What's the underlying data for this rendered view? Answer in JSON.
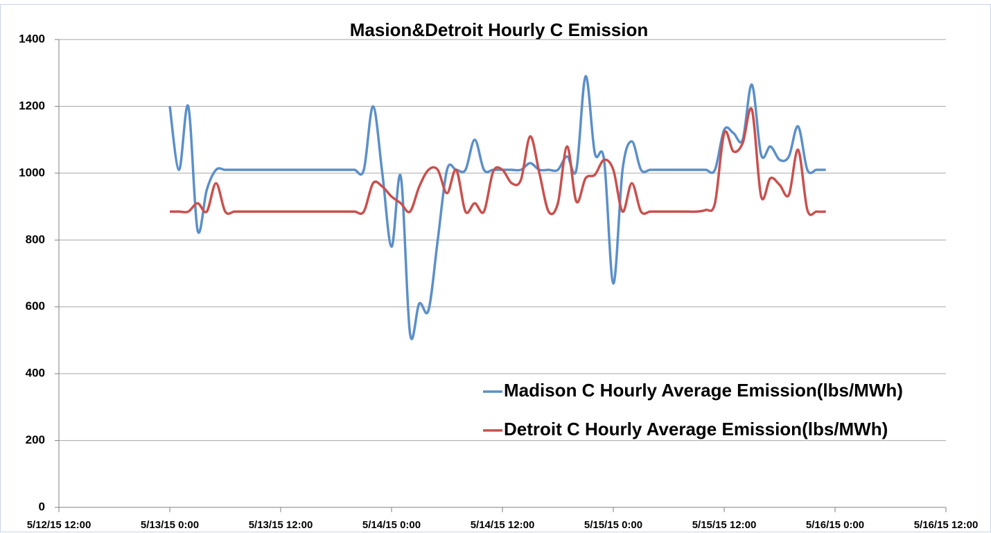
{
  "chart_data": {
    "type": "line",
    "title": "Masion&Detroit Hourly C Emission",
    "x": [
      "5/13/15 0:00",
      "5/13/15 1:00",
      "5/13/15 2:00",
      "5/13/15 3:00",
      "5/13/15 4:00",
      "5/13/15 5:00",
      "5/13/15 6:00",
      "5/13/15 7:00",
      "5/13/15 8:00",
      "5/13/15 9:00",
      "5/13/15 10:00",
      "5/13/15 11:00",
      "5/13/15 12:00",
      "5/13/15 13:00",
      "5/13/15 14:00",
      "5/13/15 15:00",
      "5/13/15 16:00",
      "5/13/15 17:00",
      "5/13/15 18:00",
      "5/13/15 19:00",
      "5/13/15 20:00",
      "5/13/15 21:00",
      "5/13/15 22:00",
      "5/13/15 23:00",
      "5/14/15 0:00",
      "5/14/15 1:00",
      "5/14/15 2:00",
      "5/14/15 3:00",
      "5/14/15 4:00",
      "5/14/15 5:00",
      "5/14/15 6:00",
      "5/14/15 7:00",
      "5/14/15 8:00",
      "5/14/15 9:00",
      "5/14/15 10:00",
      "5/14/15 11:00",
      "5/14/15 12:00",
      "5/14/15 13:00",
      "5/14/15 14:00",
      "5/14/15 15:00",
      "5/14/15 16:00",
      "5/14/15 17:00",
      "5/14/15 18:00",
      "5/14/15 19:00",
      "5/14/15 20:00",
      "5/14/15 21:00",
      "5/14/15 22:00",
      "5/14/15 23:00",
      "5/15/15 0:00",
      "5/15/15 1:00",
      "5/15/15 2:00",
      "5/15/15 3:00",
      "5/15/15 4:00",
      "5/15/15 5:00",
      "5/15/15 6:00",
      "5/15/15 7:00",
      "5/15/15 8:00",
      "5/15/15 9:00",
      "5/15/15 10:00",
      "5/15/15 11:00",
      "5/15/15 12:00",
      "5/15/15 13:00",
      "5/15/15 14:00",
      "5/15/15 15:00",
      "5/15/15 16:00",
      "5/15/15 17:00",
      "5/15/15 18:00",
      "5/15/15 19:00",
      "5/15/15 20:00",
      "5/15/15 21:00",
      "5/15/15 22:00",
      "5/15/15 23:00"
    ],
    "series": [
      {
        "name": "Madison C Hourly Average Emission(lbs/MWh)",
        "color": "#5b8fc9",
        "values": [
          1200,
          1010,
          1200,
          830,
          950,
          1010,
          1010,
          1010,
          1010,
          1010,
          1010,
          1010,
          1010,
          1010,
          1010,
          1010,
          1010,
          1010,
          1010,
          1010,
          1010,
          1010,
          1200,
          1000,
          780,
          990,
          520,
          610,
          590,
          800,
          1010,
          1010,
          1010,
          1100,
          1010,
          1010,
          1010,
          1010,
          1010,
          1030,
          1010,
          1010,
          1010,
          1050,
          1010,
          1290,
          1060,
          1040,
          670,
          1010,
          1095,
          1010,
          1010,
          1010,
          1010,
          1010,
          1010,
          1010,
          1010,
          1010,
          1130,
          1120,
          1100,
          1265,
          1055,
          1080,
          1040,
          1050,
          1140,
          1010,
          1010,
          1010
        ]
      },
      {
        "name": "Detroit C Hourly Average Emission(lbs/MWh)",
        "color": "#c9504d",
        "values": [
          885,
          885,
          885,
          910,
          885,
          970,
          885,
          885,
          885,
          885,
          885,
          885,
          885,
          885,
          885,
          885,
          885,
          885,
          885,
          885,
          885,
          885,
          970,
          960,
          930,
          910,
          885,
          960,
          1010,
          1010,
          940,
          1010,
          885,
          910,
          885,
          1005,
          1010,
          970,
          980,
          1110,
          1000,
          885,
          910,
          1080,
          915,
          985,
          995,
          1040,
          1010,
          885,
          970,
          885,
          885,
          885,
          885,
          885,
          885,
          885,
          890,
          910,
          1120,
          1065,
          1090,
          1190,
          930,
          985,
          965,
          935,
          1070,
          890,
          885,
          885
        ]
      }
    ],
    "xlim": [
      "5/12/15 12:00",
      "5/16/15 12:00"
    ],
    "xticks": [
      "5/12/15 12:00",
      "5/13/15 0:00",
      "5/13/15 12:00",
      "5/14/15 0:00",
      "5/14/15 12:00",
      "5/15/15 0:00",
      "5/15/15 12:00",
      "5/16/15 0:00",
      "5/16/15 12:00"
    ],
    "ylim": [
      0,
      1400
    ],
    "yticks": [
      0,
      200,
      400,
      600,
      800,
      1000,
      1200,
      1400
    ],
    "grid": true,
    "legend": "lower right"
  }
}
